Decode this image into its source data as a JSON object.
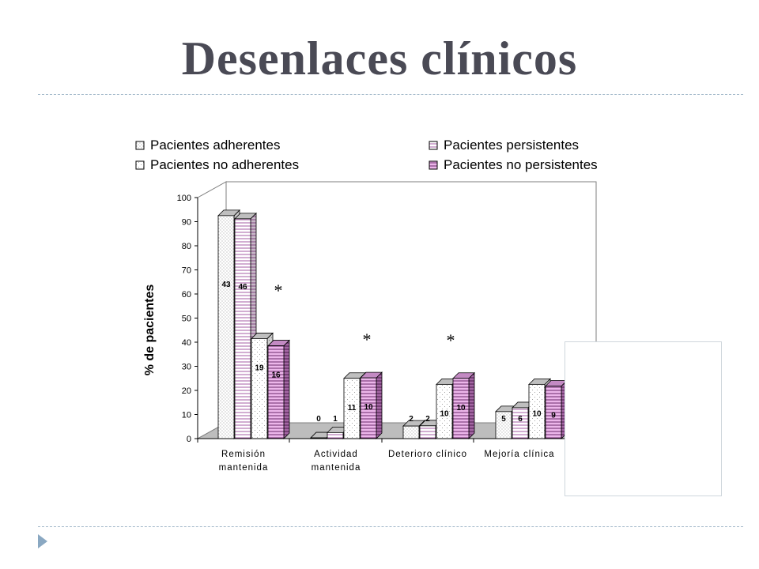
{
  "slide": {
    "title": "Desenlaces clínicos"
  },
  "colors": {
    "title": "#4a4a55",
    "rule": "#9fb6c8",
    "bullet": "#8aa8c2",
    "series_fill": [
      "#ffffff",
      "#ffffff",
      "#ffffff",
      "#e9a8e6"
    ],
    "series_stroke": "#000000"
  },
  "chart_data": {
    "type": "bar",
    "title": "",
    "xlabel": "",
    "ylabel": "% de pacientes",
    "ylim": [
      0,
      100
    ],
    "yticks": [
      0,
      10,
      20,
      30,
      40,
      50,
      60,
      70,
      80,
      90,
      100
    ],
    "categories": [
      [
        "Remisión",
        "mantenida"
      ],
      [
        "Actividad",
        "mantenida"
      ],
      [
        "Deterioro clínico"
      ],
      [
        "Mejoría clínica"
      ]
    ],
    "series": [
      {
        "name": "Pacientes adherentes",
        "pattern": "dots",
        "values": [
          92.5,
          0.3,
          5.2,
          11.2
        ],
        "labels": [
          "43",
          "0",
          "2",
          "5"
        ]
      },
      {
        "name": "Pacientes persistentes",
        "pattern": "hlines",
        "values": [
          91.2,
          2.5,
          5.3,
          12.8
        ],
        "labels": [
          "46",
          "1",
          "2",
          "6"
        ]
      },
      {
        "name": "Pacientes no adherentes",
        "pattern": "sparse-dots",
        "values": [
          41.5,
          25.0,
          22.5,
          22.5
        ],
        "labels": [
          "19",
          "11",
          "10",
          "10"
        ]
      },
      {
        "name": "Pacientes no persistentes",
        "pattern": "pink-lines",
        "values": [
          38.5,
          25.2,
          25.0,
          21.8
        ],
        "labels": [
          "16",
          "10",
          "10",
          "9"
        ]
      }
    ],
    "legend": {
      "placement": "top",
      "columns": 2
    },
    "annotations": [
      {
        "text": "*",
        "category_index": 0
      },
      {
        "text": "*",
        "category_index": 1
      },
      {
        "text": "*",
        "category_index": 2
      }
    ],
    "grid": false
  }
}
